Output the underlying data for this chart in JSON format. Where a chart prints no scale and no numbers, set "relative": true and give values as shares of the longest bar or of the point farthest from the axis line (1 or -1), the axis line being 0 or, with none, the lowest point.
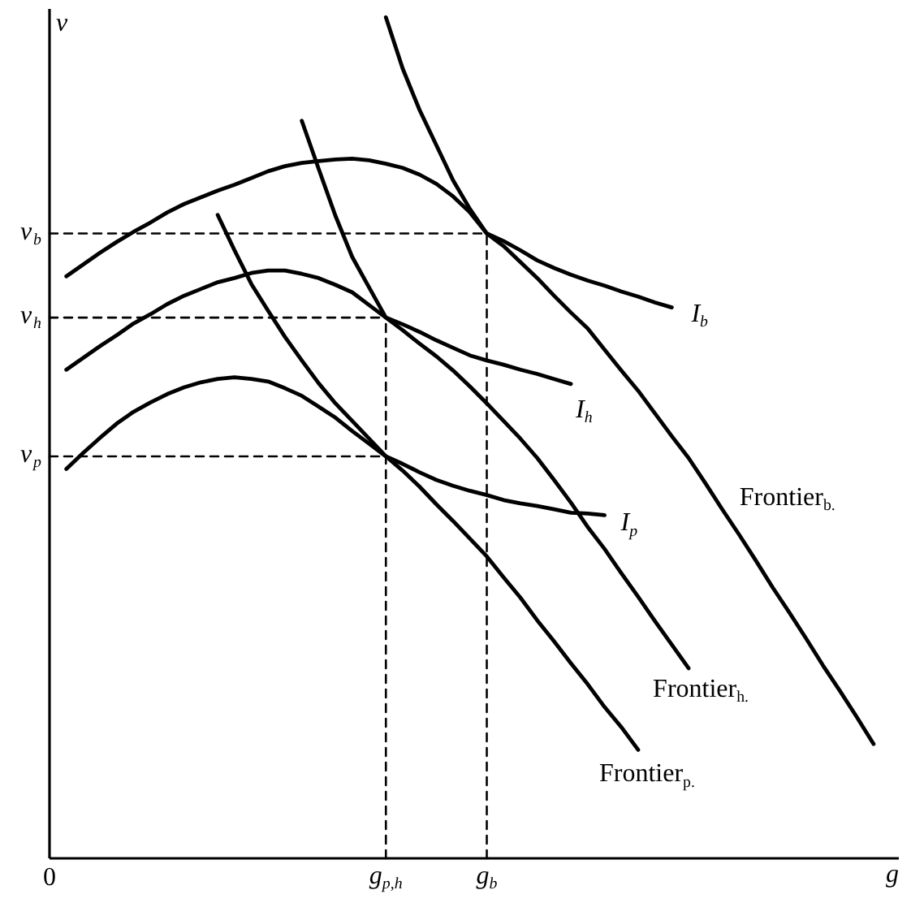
{
  "chart_data": {
    "type": "line",
    "relative": true,
    "xlabel": "g",
    "ylabel": "v",
    "categories": [
      "0",
      null,
      null,
      null,
      null,
      null,
      null,
      null,
      null,
      null,
      null,
      null,
      null,
      null,
      null,
      null,
      null,
      null,
      null,
      null,
      "g$_{p,h}$",
      null,
      null,
      null,
      null,
      null,
      "g$_{b}$",
      null,
      null,
      null,
      null,
      null,
      null,
      null,
      null,
      null,
      null,
      null,
      null,
      null,
      null,
      null,
      null,
      null,
      null,
      null,
      null,
      null,
      null,
      null,
      null
    ],
    "series": [
      {
        "name": "I$_{b}$",
        "color": "#000000",
        "values": [
          null,
          0.692,
          0.706,
          0.72,
          0.733,
          0.745,
          0.756,
          0.768,
          0.778,
          0.786,
          0.794,
          0.801,
          0.809,
          0.817,
          0.823,
          0.827,
          0.829,
          0.831,
          0.832,
          0.83,
          0.826,
          0.821,
          0.813,
          0.802,
          0.787,
          0.768,
          0.743,
          0.734,
          0.723,
          0.711,
          0.702,
          0.694,
          0.687,
          0.681,
          0.674,
          0.668,
          0.661,
          0.655,
          null,
          null,
          null,
          null,
          null,
          null,
          null,
          null,
          null,
          null,
          null,
          null,
          null
        ]
      },
      {
        "name": "I$_{h}$",
        "color": "#000000",
        "values": [
          null,
          0.581,
          0.595,
          0.609,
          0.622,
          0.636,
          0.647,
          0.659,
          0.669,
          0.677,
          0.685,
          0.69,
          0.696,
          0.699,
          0.699,
          0.695,
          0.69,
          0.682,
          0.673,
          0.658,
          0.643,
          0.635,
          0.626,
          0.616,
          0.607,
          0.598,
          0.592,
          0.587,
          0.581,
          0.576,
          0.57,
          0.564,
          null,
          null,
          null,
          null,
          null,
          null,
          null,
          null,
          null,
          null,
          null,
          null,
          null,
          null,
          null,
          null,
          null,
          null,
          null
        ]
      },
      {
        "name": "I$_{p}$",
        "color": "#000000",
        "values": [
          null,
          0.463,
          0.482,
          0.5,
          0.517,
          0.531,
          0.542,
          0.552,
          0.56,
          0.566,
          0.57,
          0.572,
          0.57,
          0.567,
          0.559,
          0.55,
          0.537,
          0.524,
          0.508,
          0.493,
          0.478,
          0.469,
          0.459,
          0.45,
          0.443,
          0.437,
          0.432,
          0.426,
          0.422,
          0.419,
          0.415,
          0.411,
          0.41,
          0.408,
          null,
          null,
          null,
          null,
          null,
          null,
          null,
          null,
          null,
          null,
          null,
          null,
          null,
          null,
          null,
          null,
          null
        ]
      },
      {
        "name": "Frontier$_{b.}$",
        "color": "#000000",
        "values": [
          null,
          null,
          null,
          null,
          null,
          null,
          null,
          null,
          null,
          null,
          null,
          null,
          null,
          null,
          null,
          null,
          null,
          null,
          null,
          null,
          1,
          0.939,
          0.89,
          0.848,
          0.806,
          0.772,
          0.743,
          0.728,
          0.709,
          0.69,
          0.669,
          0.649,
          0.63,
          0.605,
          0.58,
          0.556,
          0.529,
          0.502,
          0.476,
          0.446,
          0.415,
          0.385,
          0.354,
          0.322,
          0.292,
          0.261,
          0.229,
          0.199,
          0.168,
          0.136,
          null
        ]
      },
      {
        "name": "Frontier$_{h.}$",
        "color": "#000000",
        "values": [
          null,
          null,
          null,
          null,
          null,
          null,
          null,
          null,
          null,
          null,
          null,
          null,
          null,
          null,
          null,
          0.877,
          0.82,
          0.764,
          0.715,
          0.679,
          0.643,
          0.628,
          0.612,
          0.597,
          0.58,
          0.561,
          0.541,
          0.52,
          0.499,
          0.476,
          0.45,
          0.423,
          0.394,
          0.368,
          0.339,
          0.311,
          0.282,
          0.254,
          0.226,
          null,
          null,
          null,
          null,
          null,
          null,
          null,
          null,
          null,
          null,
          null,
          null
        ]
      },
      {
        "name": "Frontier$_{p.}$",
        "color": "#000000",
        "values": [
          null,
          null,
          null,
          null,
          null,
          null,
          null,
          null,
          null,
          null,
          0.765,
          0.723,
          0.683,
          0.651,
          0.62,
          0.592,
          0.565,
          0.541,
          0.52,
          0.499,
          0.478,
          0.461,
          0.442,
          0.421,
          0.401,
          0.38,
          0.359,
          0.334,
          0.31,
          0.283,
          0.258,
          0.232,
          0.207,
          0.18,
          0.156,
          0.129,
          null,
          null,
          null,
          null,
          null,
          null,
          null,
          null,
          null,
          null,
          null,
          null,
          null,
          null,
          null
        ]
      },
      {
        "name": "v$_{b}$",
        "color": "#000000",
        "line_style": "dashed",
        "values": [
          0.743,
          0.743,
          0.743,
          0.743,
          0.743,
          0.743,
          0.743,
          0.743,
          0.743,
          0.743,
          0.743,
          0.743,
          0.743,
          0.743,
          0.743,
          0.743,
          0.743,
          0.743,
          0.743,
          0.743,
          0.743,
          0.743,
          0.743,
          0.743,
          0.743,
          0.743,
          0.743,
          null,
          null,
          null,
          null,
          null,
          null,
          null,
          null,
          null,
          null,
          null,
          null,
          null,
          null,
          null,
          null,
          null,
          null,
          null,
          null,
          null,
          null,
          null,
          null
        ]
      },
      {
        "name": "v$_{h}$",
        "color": "#000000",
        "line_style": "dashed",
        "values": [
          0.643,
          0.643,
          0.643,
          0.643,
          0.643,
          0.643,
          0.643,
          0.643,
          0.643,
          0.643,
          0.643,
          0.643,
          0.643,
          0.643,
          0.643,
          0.643,
          0.643,
          0.643,
          0.643,
          0.643,
          0.643,
          null,
          null,
          null,
          null,
          null,
          null,
          null,
          null,
          null,
          null,
          null,
          null,
          null,
          null,
          null,
          null,
          null,
          null,
          null,
          null,
          null,
          null,
          null,
          null,
          null,
          null,
          null,
          null,
          null,
          null
        ]
      },
      {
        "name": "v$_{p}$",
        "color": "#000000",
        "line_style": "dashed",
        "values": [
          0.478,
          0.478,
          0.478,
          0.478,
          0.478,
          0.478,
          0.478,
          0.478,
          0.478,
          0.478,
          0.478,
          0.478,
          0.478,
          0.478,
          0.478,
          0.478,
          0.478,
          0.478,
          0.478,
          0.478,
          0.478,
          null,
          null,
          null,
          null,
          null,
          null,
          null,
          null,
          null,
          null,
          null,
          null,
          null,
          null,
          null,
          null,
          null,
          null,
          null,
          null,
          null,
          null,
          null,
          null,
          null,
          null,
          null,
          null,
          null,
          null
        ]
      },
      {
        "color": "#000000",
        "line_style": "dashed",
        "x": [
          "g$_{p,h}$",
          "g$_{p,h}$"
        ],
        "values": [
          0,
          0.643
        ]
      },
      {
        "color": "#000000",
        "line_style": "dashed",
        "x": [
          "g$_{b}$",
          "g$_{b}$"
        ],
        "values": [
          0,
          0.743
        ]
      }
    ]
  }
}
